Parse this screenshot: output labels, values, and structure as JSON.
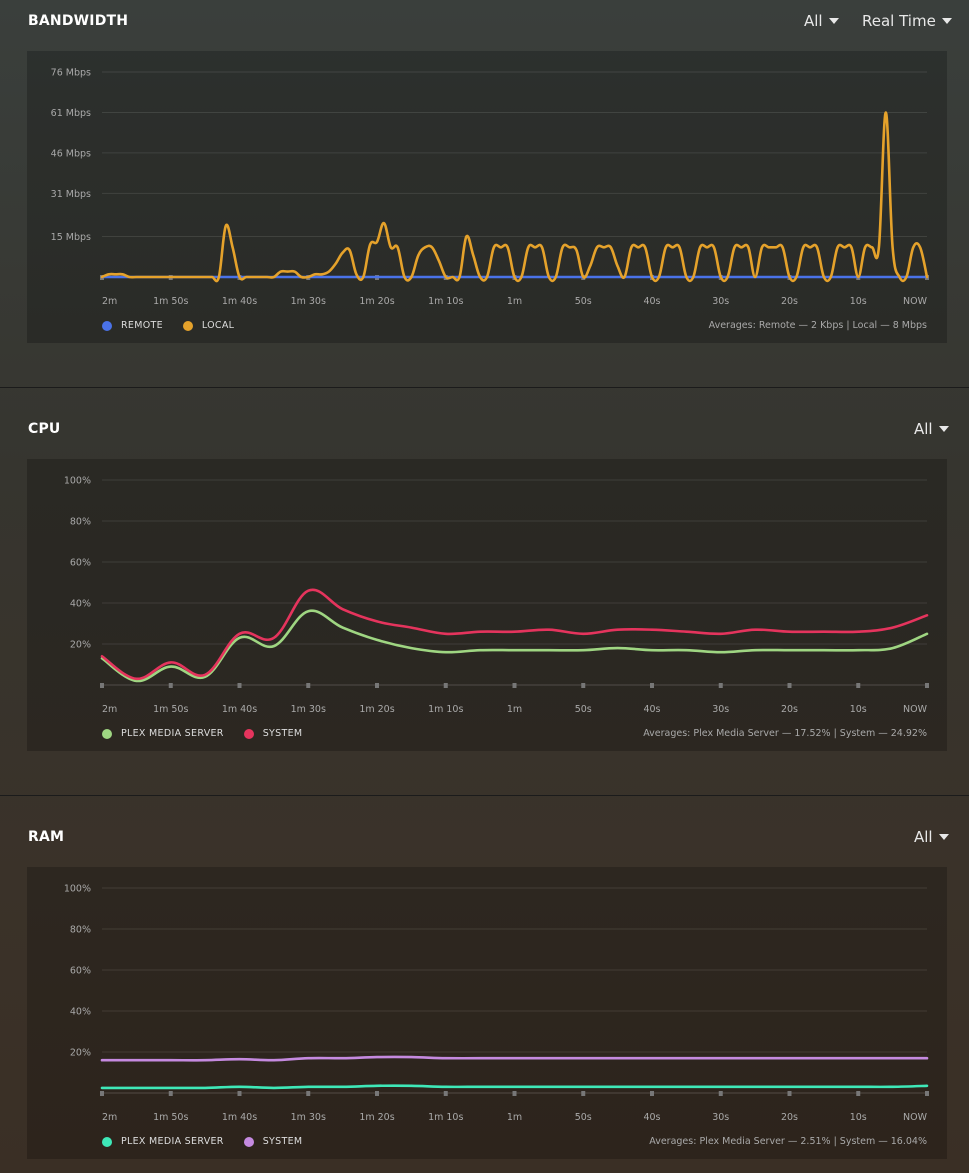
{
  "bandwidth": {
    "title": "BANDWIDTH",
    "filter": "All",
    "range": "Real Time",
    "averages": "Averages: Remote — 2 Kbps | Local — 8 Mbps",
    "legend": [
      {
        "label": "REMOTE",
        "color": "#4a72e8"
      },
      {
        "label": "LOCAL",
        "color": "#e5a22b"
      }
    ]
  },
  "cpu": {
    "title": "CPU",
    "filter": "All",
    "averages": "Averages: Plex Media Server — 17.52% | System — 24.92%",
    "legend": [
      {
        "label": "PLEX MEDIA SERVER",
        "color": "#9fd682"
      },
      {
        "label": "SYSTEM",
        "color": "#e5345d"
      }
    ]
  },
  "ram": {
    "title": "RAM",
    "filter": "All",
    "averages": "Averages: Plex Media Server — 2.51% | System — 16.04%",
    "legend": [
      {
        "label": "PLEX MEDIA SERVER",
        "color": "#3ee8b8"
      },
      {
        "label": "SYSTEM",
        "color": "#c58ae0"
      }
    ]
  },
  "chart_data": [
    {
      "type": "line",
      "title": "BANDWIDTH",
      "x_ticks": [
        "2m",
        "1m 50s",
        "1m 40s",
        "1m 30s",
        "1m 20s",
        "1m 10s",
        "1m",
        "50s",
        "40s",
        "30s",
        "20s",
        "10s",
        "NOW"
      ],
      "y_ticks": [
        "15 Mbps",
        "31 Mbps",
        "46 Mbps",
        "61 Mbps",
        "76 Mbps"
      ],
      "y_unit": "Mbps",
      "ylim": [
        0,
        76
      ],
      "grid": true,
      "legend_position": "bottom-left",
      "series": [
        {
          "name": "REMOTE",
          "color": "#4a72e8",
          "values": [
            0,
            0,
            0,
            0,
            0,
            0,
            0,
            0,
            0,
            0,
            0,
            0,
            0,
            0,
            0,
            0,
            0,
            0,
            0,
            0,
            0,
            0,
            0,
            0,
            0,
            0,
            0,
            0,
            0,
            0,
            0,
            0,
            0,
            0,
            0,
            0,
            0,
            0,
            0,
            0,
            0,
            0,
            0,
            0,
            0,
            0,
            0,
            0,
            0,
            0,
            0,
            0,
            0,
            0,
            0,
            0,
            0,
            0,
            0,
            0,
            0,
            0,
            0,
            0,
            0,
            0,
            0,
            0,
            0,
            0,
            0,
            0,
            0,
            0,
            0,
            0,
            0,
            0,
            0,
            0,
            0,
            0,
            0,
            0,
            0,
            0,
            0,
            0,
            0,
            0,
            0,
            0,
            0,
            0,
            0,
            0,
            0,
            0,
            0,
            0,
            0,
            0,
            0,
            0,
            0,
            0,
            0,
            0,
            0,
            0,
            0,
            0,
            0,
            0,
            0,
            0,
            0,
            0,
            0,
            0,
            0
          ]
        },
        {
          "name": "LOCAL",
          "color": "#e5a22b",
          "values": [
            0,
            1,
            1,
            1,
            0,
            0,
            0,
            0,
            0,
            0,
            0,
            0,
            0,
            0,
            0,
            0,
            0,
            0,
            19,
            11,
            0,
            0,
            0,
            0,
            0,
            0,
            2,
            2,
            2,
            0,
            0,
            1,
            1,
            2,
            5,
            9,
            10,
            1,
            0,
            12,
            13,
            20,
            11,
            11,
            0,
            0,
            8,
            11,
            11,
            6,
            0,
            0,
            0,
            15,
            8,
            0,
            0,
            11,
            11,
            11,
            0,
            0,
            11,
            11,
            11,
            0,
            0,
            11,
            11,
            10,
            0,
            4,
            11,
            11,
            11,
            4,
            0,
            11,
            11,
            11,
            0,
            0,
            11,
            11,
            11,
            0,
            0,
            11,
            11,
            11,
            0,
            0,
            11,
            11,
            11,
            0,
            11,
            11,
            11,
            11,
            0,
            0,
            11,
            11,
            11,
            0,
            0,
            11,
            11,
            11,
            0,
            11,
            11,
            11,
            61,
            11,
            0,
            0,
            11,
            11,
            0
          ]
        }
      ]
    },
    {
      "type": "line",
      "title": "CPU",
      "x_ticks": [
        "2m",
        "1m 50s",
        "1m 40s",
        "1m 30s",
        "1m 20s",
        "1m 10s",
        "1m",
        "50s",
        "40s",
        "30s",
        "20s",
        "10s",
        "NOW"
      ],
      "y_ticks": [
        "20%",
        "40%",
        "60%",
        "80%",
        "100%"
      ],
      "y_unit": "%",
      "ylim": [
        0,
        100
      ],
      "grid": true,
      "legend_position": "bottom-left",
      "series": [
        {
          "name": "PLEX MEDIA SERVER",
          "color": "#9fd682",
          "values": [
            13,
            2,
            9,
            4,
            23,
            19,
            36,
            28,
            22,
            18,
            16,
            17,
            17,
            17,
            17,
            18,
            17,
            17,
            16,
            17,
            17,
            17,
            17,
            18,
            25
          ]
        },
        {
          "name": "SYSTEM",
          "color": "#e5345d",
          "values": [
            14,
            3,
            11,
            5,
            25,
            23,
            46,
            37,
            31,
            28,
            25,
            26,
            26,
            27,
            25,
            27,
            27,
            26,
            25,
            27,
            26,
            26,
            26,
            28,
            34
          ]
        }
      ]
    },
    {
      "type": "line",
      "title": "RAM",
      "x_ticks": [
        "2m",
        "1m 50s",
        "1m 40s",
        "1m 30s",
        "1m 20s",
        "1m 10s",
        "1m",
        "50s",
        "40s",
        "30s",
        "20s",
        "10s",
        "NOW"
      ],
      "y_ticks": [
        "20%",
        "40%",
        "60%",
        "80%",
        "100%"
      ],
      "y_unit": "%",
      "ylim": [
        0,
        100
      ],
      "grid": true,
      "legend_position": "bottom-left",
      "series": [
        {
          "name": "PLEX MEDIA SERVER",
          "color": "#3ee8b8",
          "values": [
            2.5,
            2.5,
            2.5,
            2.5,
            3,
            2.5,
            3,
            3,
            3.5,
            3.5,
            3,
            3,
            3,
            3,
            3,
            3,
            3,
            3,
            3,
            3,
            3,
            3,
            3,
            3,
            3.5
          ]
        },
        {
          "name": "SYSTEM",
          "color": "#c58ae0",
          "values": [
            16,
            16,
            16,
            16,
            16.5,
            16,
            17,
            17,
            17.5,
            17.5,
            17,
            17,
            17,
            17,
            17,
            17,
            17,
            17,
            17,
            17,
            17,
            17,
            17,
            17,
            17
          ]
        }
      ]
    }
  ]
}
